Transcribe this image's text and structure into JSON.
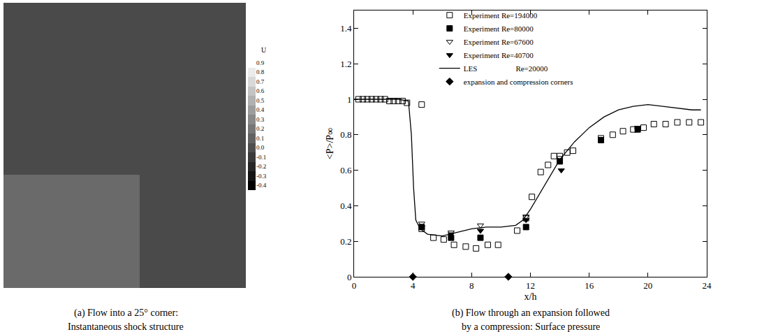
{
  "chart_data": [
    {
      "type": "image",
      "caption": [
        "(a) Flow into a 25° corner:",
        "Instantaneous shock structure"
      ],
      "colorbar": {
        "title": "U",
        "range": [
          -0.4,
          0.9
        ],
        "ticks": [
          -0.4,
          -0.3,
          -0.2,
          -0.1,
          {
            "value": 0,
            "label": "0.0"
          },
          0.1,
          0.2,
          0.3,
          0.4,
          0.5,
          0.6,
          0.7,
          0.8,
          0.9
        ]
      }
    },
    {
      "type": "scatter",
      "caption": [
        "(b) Flow through an expansion followed",
        "by a compression: Surface pressure"
      ],
      "xlabel": "x/h",
      "ylabel": "<P>/P∞",
      "xlim": [
        0,
        24
      ],
      "ylim": [
        0,
        1.5
      ],
      "xticks": [
        0,
        4,
        8,
        12,
        16,
        20,
        24
      ],
      "yticks": [
        0,
        0.2,
        0.4,
        0.6,
        0.8,
        1,
        1.2,
        1.4
      ],
      "legend": "top",
      "series": [
        {
          "name": "Experiment Re=194000",
          "type": "scatter",
          "marker": "square-open",
          "color": "#000000",
          "x": [
            0.3,
            0.6,
            0.9,
            1.2,
            1.5,
            1.8,
            2.1,
            2.4,
            2.7,
            3.0,
            3.3,
            3.6,
            4.6,
            4.6,
            5.4,
            6.1,
            6.8,
            7.6,
            8.3,
            9.1,
            9.8,
            11.1,
            11.7,
            12.1,
            12.7,
            13.2,
            13.6,
            14.0,
            14.5,
            14.9,
            16.8,
            17.6,
            18.3,
            19.0,
            19.7,
            20.4,
            21.2,
            22.0,
            22.8,
            23.6
          ],
          "values": [
            1.0,
            1.0,
            1.0,
            1.0,
            1.0,
            1.0,
            1.0,
            0.99,
            0.99,
            0.99,
            0.99,
            0.98,
            0.97,
            0.27,
            0.22,
            0.21,
            0.18,
            0.17,
            0.16,
            0.18,
            0.18,
            0.26,
            0.33,
            0.45,
            0.59,
            0.63,
            0.68,
            0.68,
            0.7,
            0.71,
            0.78,
            0.8,
            0.82,
            0.83,
            0.84,
            0.86,
            0.86,
            0.87,
            0.87,
            0.87
          ]
        },
        {
          "name": "Experiment Re=80000",
          "type": "scatter",
          "marker": "square",
          "color": "#000000",
          "x": [
            4.6,
            6.6,
            8.6,
            11.7,
            14.0,
            16.8,
            19.3
          ],
          "values": [
            0.28,
            0.22,
            0.22,
            0.28,
            0.65,
            0.77,
            0.83
          ]
        },
        {
          "name": "Experiment Re=67600",
          "type": "scatter",
          "marker": "triangle-down-open",
          "color": "#000000",
          "x": [
            4.6,
            6.6,
            8.6,
            11.7,
            14.0,
            19.3
          ],
          "values": [
            0.3,
            0.25,
            0.29,
            0.34,
            0.67,
            0.84
          ]
        },
        {
          "name": "Experiment Re=40700",
          "type": "scatter",
          "marker": "triangle-down",
          "color": "#000000",
          "x": [
            4.6,
            6.6,
            8.6,
            11.7,
            14.1,
            19.3
          ],
          "values": [
            0.28,
            0.24,
            0.26,
            0.32,
            0.6,
            0.83
          ]
        },
        {
          "name": "LES                    Re=20000",
          "type": "line",
          "line_style": "solid",
          "color": "#000000",
          "x": [
            0,
            3,
            3.7,
            3.9,
            4.05,
            4.2,
            4.5,
            5,
            6,
            7,
            8,
            9,
            10,
            11,
            11.5,
            12,
            13,
            14,
            15,
            16,
            17,
            18,
            19,
            20,
            21,
            22,
            23,
            23.6
          ],
          "values": [
            1.0,
            1.0,
            0.99,
            0.8,
            0.5,
            0.32,
            0.27,
            0.24,
            0.23,
            0.25,
            0.27,
            0.28,
            0.28,
            0.29,
            0.32,
            0.38,
            0.52,
            0.66,
            0.76,
            0.84,
            0.9,
            0.94,
            0.96,
            0.97,
            0.96,
            0.95,
            0.94,
            0.94
          ]
        },
        {
          "name": "expansion and compression corners",
          "type": "scatter",
          "marker": "diamond",
          "color": "#000000",
          "x": [
            4,
            10.5
          ],
          "values": [
            0,
            0
          ]
        }
      ]
    }
  ]
}
